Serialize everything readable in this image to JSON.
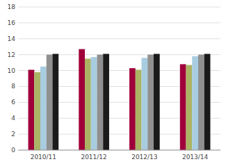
{
  "chart_data": {
    "type": "bar",
    "categories": [
      "2010/11",
      "2011/12",
      "2012/13",
      "2013/14"
    ],
    "series": [
      {
        "color": "#a0003a",
        "values": [
          10.1,
          12.7,
          10.3,
          10.8
        ]
      },
      {
        "color": "#aab464",
        "values": [
          9.8,
          11.5,
          10.1,
          10.7
        ]
      },
      {
        "color": "#a8cce0",
        "values": [
          10.5,
          11.7,
          11.6,
          11.8
        ]
      },
      {
        "color": "#909090",
        "values": [
          12.0,
          12.0,
          12.0,
          12.0
        ]
      },
      {
        "color": "#1a1a1a",
        "values": [
          12.1,
          12.1,
          12.1,
          12.1
        ]
      }
    ],
    "ylim": [
      0,
      18
    ],
    "yticks": [
      0,
      2,
      4,
      6,
      8,
      10,
      12,
      14,
      16,
      18
    ],
    "grid": true
  }
}
